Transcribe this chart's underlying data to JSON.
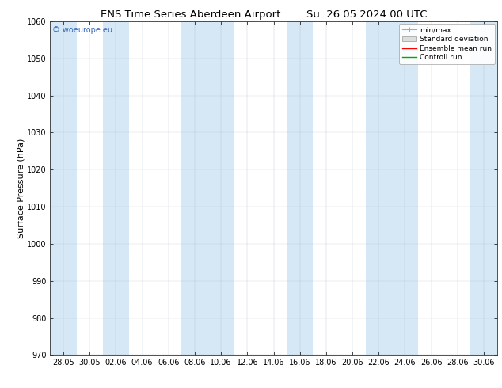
{
  "title_left": "ENS Time Series Aberdeen Airport",
  "title_right": "Su. 26.05.2024 00 UTC",
  "ylabel": "Surface Pressure (hPa)",
  "ylim": [
    970,
    1060
  ],
  "yticks": [
    970,
    980,
    990,
    1000,
    1010,
    1020,
    1030,
    1040,
    1050,
    1060
  ],
  "x_tick_labels": [
    "28.05",
    "30.05",
    "02.06",
    "04.06",
    "06.06",
    "08.06",
    "10.06",
    "12.06",
    "14.06",
    "16.06",
    "18.06",
    "20.06",
    "22.06",
    "24.06",
    "26.06",
    "28.06",
    "30.06"
  ],
  "bg_color": "#ffffff",
  "plot_bg_color": "#ffffff",
  "band_color": "#d6e8f5",
  "watermark": "© woeurope.eu",
  "watermark_color": "#3366bb",
  "legend_items": [
    "min/max",
    "Standard deviation",
    "Ensemble mean run",
    "Controll run"
  ],
  "legend_line_colors": [
    "#aaaaaa",
    "#cccccc",
    "#ff0000",
    "#00aa00"
  ],
  "title_fontsize": 9.5,
  "tick_fontsize": 7,
  "ylabel_fontsize": 8
}
